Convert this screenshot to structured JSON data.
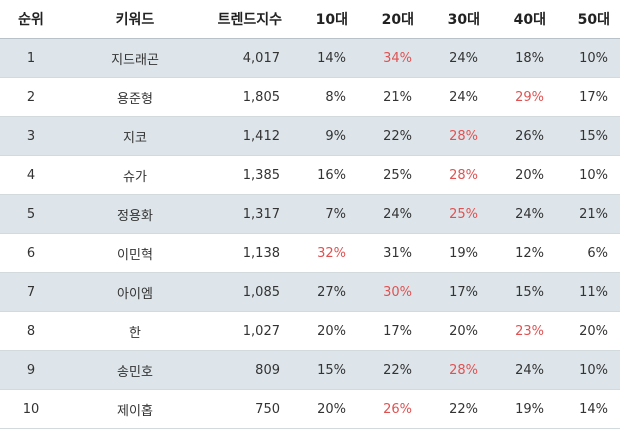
{
  "headers": [
    "순위",
    "키워드",
    "트렌드지수",
    "10대",
    "20대",
    "30대",
    "40대",
    "50대"
  ],
  "highlight_color": "#e05252",
  "rows": [
    {
      "rank": "1",
      "keyword": "지드래곤",
      "trend": "4,017",
      "age": [
        "14%",
        "34%",
        "24%",
        "18%",
        "10%"
      ],
      "max": 1
    },
    {
      "rank": "2",
      "keyword": "용준형",
      "trend": "1,805",
      "age": [
        "8%",
        "21%",
        "24%",
        "29%",
        "17%"
      ],
      "max": 3
    },
    {
      "rank": "3",
      "keyword": "지코",
      "trend": "1,412",
      "age": [
        "9%",
        "22%",
        "28%",
        "26%",
        "15%"
      ],
      "max": 2
    },
    {
      "rank": "4",
      "keyword": "슈가",
      "trend": "1,385",
      "age": [
        "16%",
        "25%",
        "28%",
        "20%",
        "10%"
      ],
      "max": 2
    },
    {
      "rank": "5",
      "keyword": "정용화",
      "trend": "1,317",
      "age": [
        "7%",
        "24%",
        "25%",
        "24%",
        "21%"
      ],
      "max": 2
    },
    {
      "rank": "6",
      "keyword": "이민혁",
      "trend": "1,138",
      "age": [
        "32%",
        "31%",
        "19%",
        "12%",
        "6%"
      ],
      "max": 0
    },
    {
      "rank": "7",
      "keyword": "아이엠",
      "trend": "1,085",
      "age": [
        "27%",
        "30%",
        "17%",
        "15%",
        "11%"
      ],
      "max": 1
    },
    {
      "rank": "8",
      "keyword": "한",
      "trend": "1,027",
      "age": [
        "20%",
        "17%",
        "20%",
        "23%",
        "20%"
      ],
      "max": 3
    },
    {
      "rank": "9",
      "keyword": "송민호",
      "trend": "809",
      "age": [
        "15%",
        "22%",
        "28%",
        "24%",
        "10%"
      ],
      "max": 2
    },
    {
      "rank": "10",
      "keyword": "제이홉",
      "trend": "750",
      "age": [
        "20%",
        "26%",
        "22%",
        "19%",
        "14%"
      ],
      "max": 1
    }
  ]
}
